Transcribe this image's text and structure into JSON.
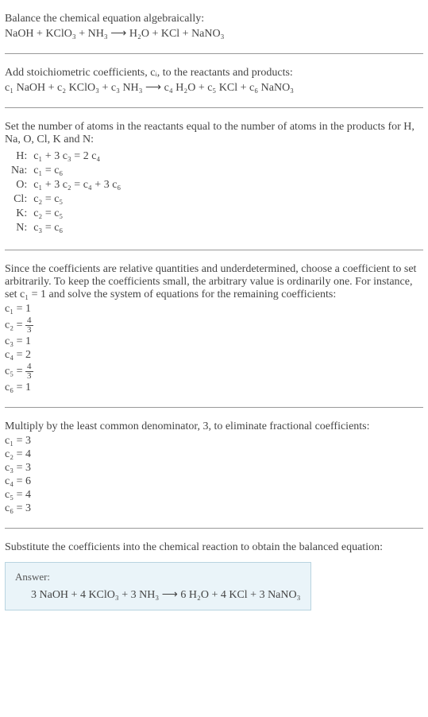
{
  "intro": {
    "line1": "Balance the chemical equation algebraically:",
    "eq": "NaOH + KClO₃ + NH₃  ⟶  H₂O + KCl + NaNO₃"
  },
  "stoich": {
    "text": "Add stoichiometric coefficients, cᵢ, to the reactants and products:",
    "eq": "c₁ NaOH + c₂ KClO₃ + c₃ NH₃  ⟶  c₄ H₂O + c₅ KCl + c₆ NaNO₃"
  },
  "atoms": {
    "text": "Set the number of atoms in the reactants equal to the number of atoms in the products for H, Na, O, Cl, K and N:",
    "rows": [
      {
        "label": "H:",
        "eq": "c₁ + 3 c₃ = 2 c₄"
      },
      {
        "label": "Na:",
        "eq": "c₁ = c₆"
      },
      {
        "label": "O:",
        "eq": "c₁ + 3 c₂ = c₄ + 3 c₆"
      },
      {
        "label": "Cl:",
        "eq": "c₂ = c₅"
      },
      {
        "label": "K:",
        "eq": "c₂ = c₅"
      },
      {
        "label": "N:",
        "eq": "c₃ = c₆"
      }
    ]
  },
  "underdet": {
    "text": "Since the coefficients are relative quantities and underdetermined, choose a coefficient to set arbitrarily. To keep the coefficients small, the arbitrary value is ordinarily one. For instance, set c₁ = 1 and solve the system of equations for the remaining coefficients:",
    "coeffs": [
      {
        "lhs": "c₁ =",
        "rhs": "1",
        "frac": null
      },
      {
        "lhs": "c₂ =",
        "rhs": null,
        "frac": {
          "num": "4",
          "den": "3"
        }
      },
      {
        "lhs": "c₃ =",
        "rhs": "1",
        "frac": null
      },
      {
        "lhs": "c₄ =",
        "rhs": "2",
        "frac": null
      },
      {
        "lhs": "c₅ =",
        "rhs": null,
        "frac": {
          "num": "4",
          "den": "3"
        }
      },
      {
        "lhs": "c₆ =",
        "rhs": "1",
        "frac": null
      }
    ]
  },
  "lcd": {
    "text": "Multiply by the least common denominator, 3, to eliminate fractional coefficients:",
    "coeffs": [
      {
        "lhs": "c₁ =",
        "rhs": "3"
      },
      {
        "lhs": "c₂ =",
        "rhs": "4"
      },
      {
        "lhs": "c₃ =",
        "rhs": "3"
      },
      {
        "lhs": "c₄ =",
        "rhs": "6"
      },
      {
        "lhs": "c₅ =",
        "rhs": "4"
      },
      {
        "lhs": "c₆ =",
        "rhs": "3"
      }
    ]
  },
  "subst": {
    "text": "Substitute the coefficients into the chemical reaction to obtain the balanced equation:"
  },
  "answer": {
    "label": "Answer:",
    "eq": "3 NaOH + 4 KClO₃ + 3 NH₃  ⟶  6 H₂O + 4 KCl + 3 NaNO₃"
  },
  "colors": {
    "text": "#444444",
    "divider": "#999999",
    "answer_bg": "#eaf4f9",
    "answer_border": "#b8d4e0"
  }
}
